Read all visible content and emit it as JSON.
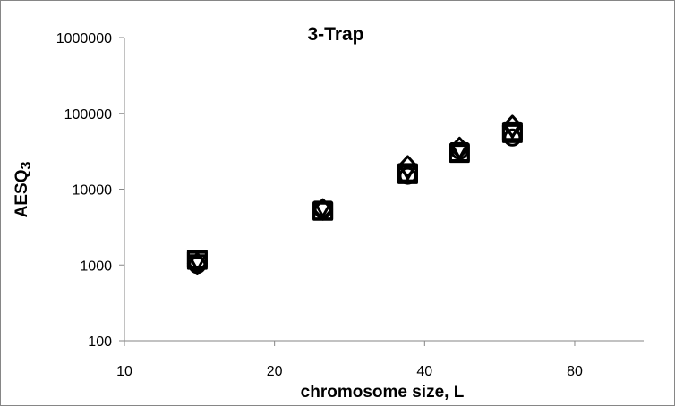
{
  "chart_data": {
    "type": "scatter",
    "title": "3-Trap",
    "xlabel": "chromosome size, L",
    "ylabel_main": "AESQ",
    "ylabel_sub": "3",
    "x_scale": "log",
    "y_scale": "log",
    "xlim": [
      10,
      110
    ],
    "ylim": [
      100,
      1000000
    ],
    "x_ticks": [
      10,
      20,
      40,
      80
    ],
    "x_tick_labels": [
      "10",
      "20",
      "40",
      "80"
    ],
    "y_ticks": [
      100,
      1000,
      10000,
      100000,
      1000000
    ],
    "y_tick_labels": [
      "100",
      "1000",
      "10000",
      "100000",
      "1000000"
    ],
    "grid": false,
    "legend": "none",
    "marker_color": "#000000",
    "series": [
      {
        "marker": "square",
        "points": [
          [
            14,
            1150
          ],
          [
            25,
            5200
          ],
          [
            37,
            15500
          ],
          [
            47,
            29500
          ],
          [
            60,
            58000
          ]
        ]
      },
      {
        "marker": "circle",
        "points": [
          [
            14,
            1000
          ],
          [
            25,
            5300
          ],
          [
            37,
            15000
          ],
          [
            47,
            32000
          ],
          [
            60,
            48000
          ]
        ]
      },
      {
        "marker": "diamond",
        "points": [
          [
            14,
            1050
          ],
          [
            25,
            5400
          ],
          [
            37,
            20000
          ],
          [
            47,
            35000
          ],
          [
            60,
            68000
          ]
        ]
      },
      {
        "marker": "triangle",
        "points": [
          [
            14,
            1100
          ],
          [
            25,
            5600
          ],
          [
            37,
            17500
          ],
          [
            47,
            33000
          ],
          [
            60,
            62000
          ]
        ]
      },
      {
        "marker": "square",
        "points": [
          [
            14,
            1200
          ],
          [
            25,
            5100
          ],
          [
            37,
            16500
          ],
          [
            47,
            30500
          ],
          [
            60,
            54000
          ]
        ]
      }
    ]
  }
}
